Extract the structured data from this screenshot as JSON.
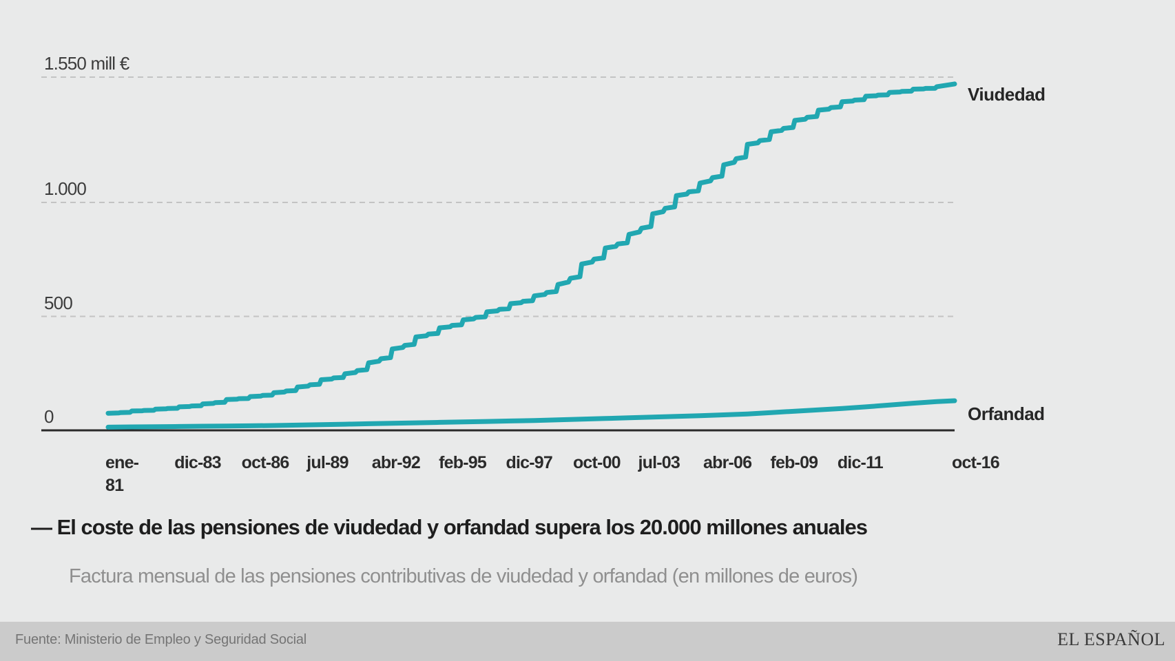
{
  "chart_data": {
    "type": "line",
    "title": "— El coste de las pensiones de viudedad y orfandad supera los 20.000 millones anuales",
    "subtitle": "Factura mensual de las pensiones contributivas de viudedad y orfandad (en millones de euros)",
    "ylim": [
      0,
      1550
    ],
    "grid": "horizontal-dashed",
    "legend_position": "right-of-line-ends",
    "accent_color": "#21a7b1",
    "axis_color": "#2a2a2a",
    "gridline_color": "#c3c3c3",
    "y_ticks": [
      {
        "value": 1550,
        "label": "1.550 mill €"
      },
      {
        "value": 1000,
        "label": "1.000"
      },
      {
        "value": 500,
        "label": "500"
      },
      {
        "value": 0,
        "label": "0"
      }
    ],
    "x_ticks": [
      {
        "label": "ene-\n81",
        "month": 0
      },
      {
        "label": "dic-83",
        "month": 35
      },
      {
        "label": "oct-86",
        "month": 69
      },
      {
        "label": "jul-89",
        "month": 102
      },
      {
        "label": "abr-92",
        "month": 135
      },
      {
        "label": "feb-95",
        "month": 169
      },
      {
        "label": "dic-97",
        "month": 203
      },
      {
        "label": "oct-00",
        "month": 237
      },
      {
        "label": "jul-03",
        "month": 270
      },
      {
        "label": "abr-06",
        "month": 303
      },
      {
        "label": "feb-09",
        "month": 337
      },
      {
        "label": "dic-11",
        "month": 371
      },
      {
        "label": "oct-16",
        "month": 429
      }
    ],
    "series": [
      {
        "name": "Viudedad",
        "style": "stepped",
        "start_year": 1981,
        "values_january": [
          75,
          85,
          93,
          103,
          116,
          135,
          148,
          165,
          190,
          222,
          248,
          296,
          357,
          410,
          450,
          485,
          520,
          556,
          590,
          640,
          730,
          800,
          860,
          950,
          1030,
          1085,
          1165,
          1255,
          1310,
          1360,
          1405,
          1442,
          1466,
          1483,
          1497,
          1508
        ],
        "final": {
          "label": "oct-16",
          "month": 429,
          "value": 1520
        }
      },
      {
        "name": "Orfandad",
        "style": "smooth",
        "start_year": 1981,
        "values_january": [
          14,
          15,
          16,
          17,
          18,
          19,
          20,
          21,
          23,
          25,
          27,
          29,
          31,
          33,
          35,
          37,
          39,
          41,
          43,
          46,
          49,
          52,
          55,
          58,
          61,
          64,
          68,
          72,
          78,
          84,
          90,
          96,
          103,
          111,
          119,
          126
        ],
        "final": {
          "label": "oct-16",
          "month": 429,
          "value": 130
        }
      }
    ]
  },
  "footer": {
    "source": "Fuente: Ministerio de Empleo y Seguridad Social",
    "logo": "EL ESPAÑOL"
  }
}
